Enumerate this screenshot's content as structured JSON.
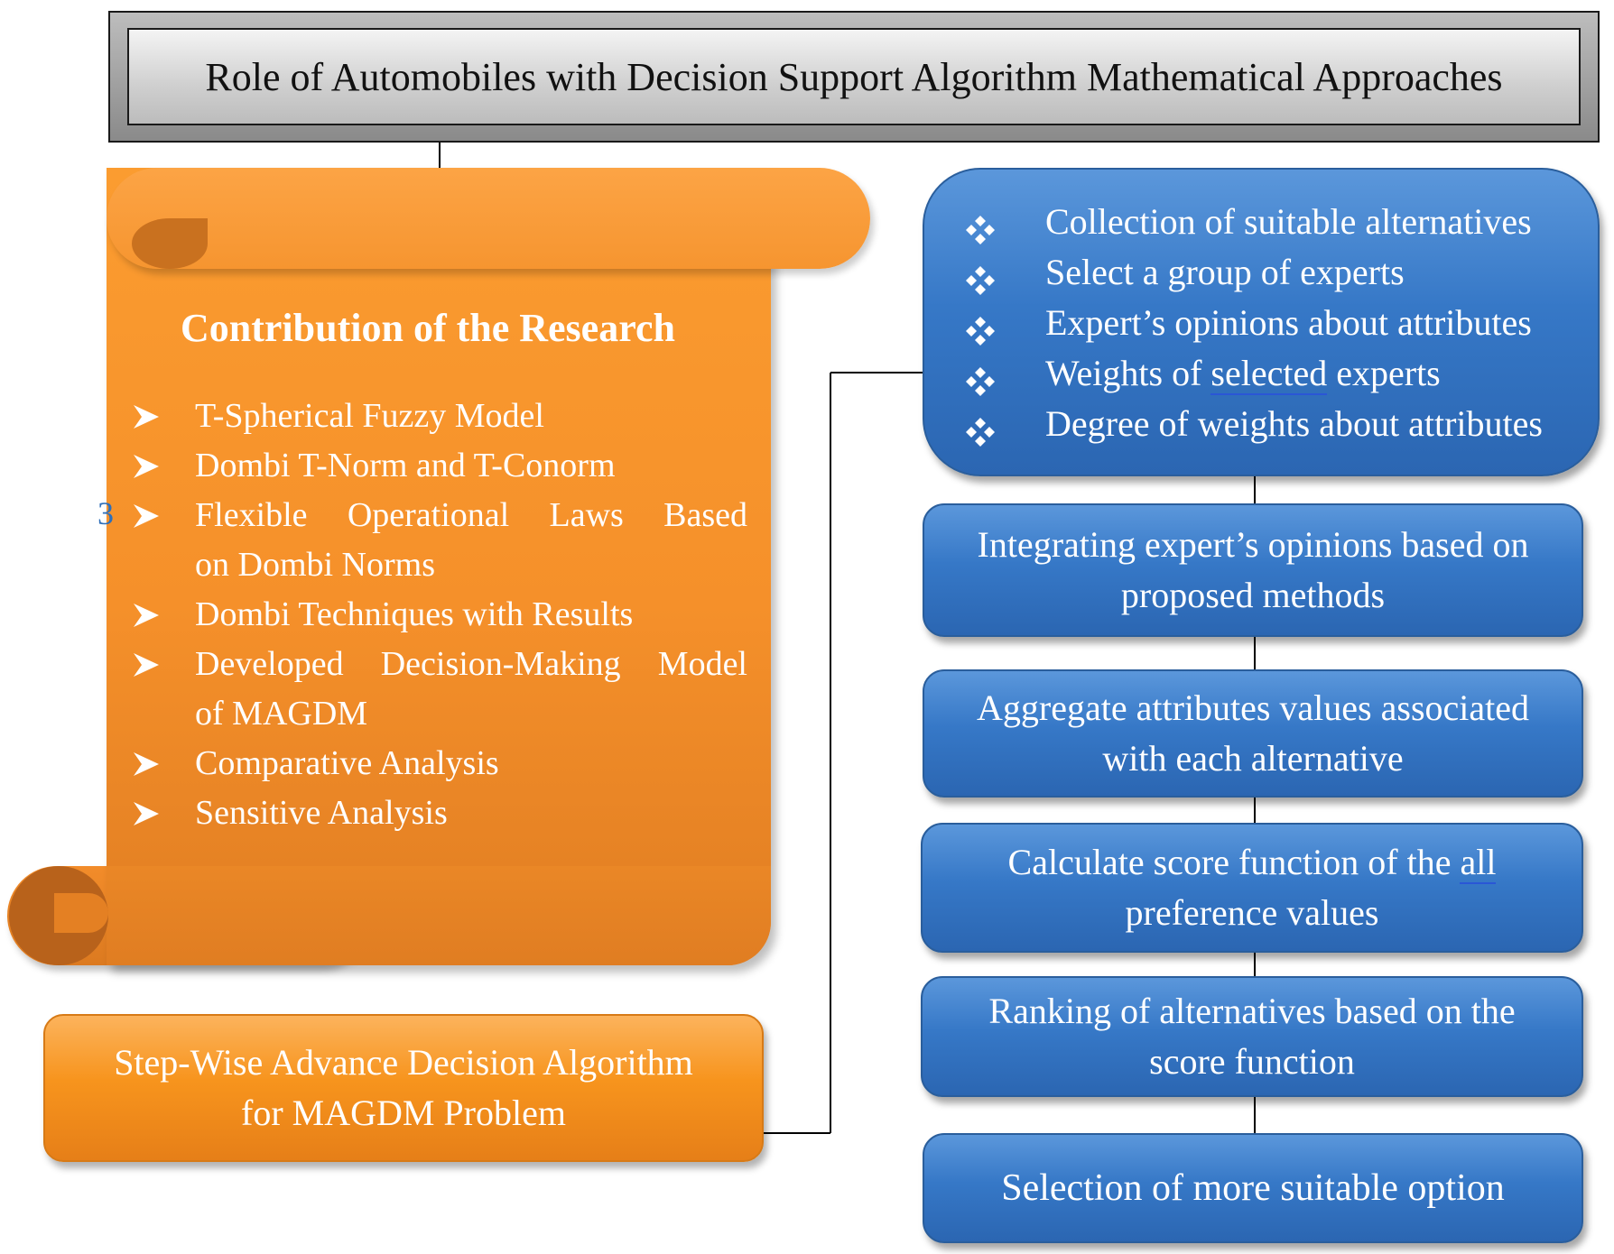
{
  "title": "Role of Automobiles with Decision Support Algorithm Mathematical Approaches",
  "contribution": {
    "heading": "Contribution of the Research",
    "items": [
      {
        "text": "T-Spherical Fuzzy Model"
      },
      {
        "text": "Dombi T-Norm and T-Conorm"
      },
      {
        "line1": "Flexible Operational Laws Based",
        "line2": "on Dombi Norms"
      },
      {
        "text": "Dombi Techniques with Results"
      },
      {
        "line1": "Developed Decision-Making Model",
        "line2": "of MAGDM"
      },
      {
        "text": "Comparative Analysis"
      },
      {
        "text": "Sensitive Analysis"
      }
    ],
    "stray_char": "3"
  },
  "stepwise": {
    "line1": "Step-Wise Advance Decision Algorithm",
    "line2": "for MAGDM Problem"
  },
  "requirements": {
    "items": [
      {
        "text": "Collection of suitable alternatives"
      },
      {
        "text": "Select a group of experts"
      },
      {
        "text": "Expert’s opinions about attributes"
      },
      {
        "pre": "Weights of ",
        "underlined": "selected",
        "post": " experts"
      },
      {
        "text": "Degree of weights about attributes"
      }
    ]
  },
  "steps": [
    {
      "line1": "Integrating expert’s opinions based on",
      "line2": "proposed methods"
    },
    {
      "line1": "Aggregate attributes values associated",
      "line2": "with each alternative"
    },
    {
      "pre": "Calculate score function of the ",
      "underlined": "all",
      "line2": "preference values"
    },
    {
      "line1": "Ranking of alternatives based on the",
      "line2": "score function"
    },
    {
      "line1": "Selection of more suitable option"
    }
  ],
  "colors": {
    "orange": "#f7941d",
    "blue": "#3678c7",
    "title_gray": "#cfcfcf"
  },
  "icons": {
    "contribution_bullet": "arrowhead-bullet-icon",
    "requirement_bullet": "four-diamond-bullet-icon"
  }
}
